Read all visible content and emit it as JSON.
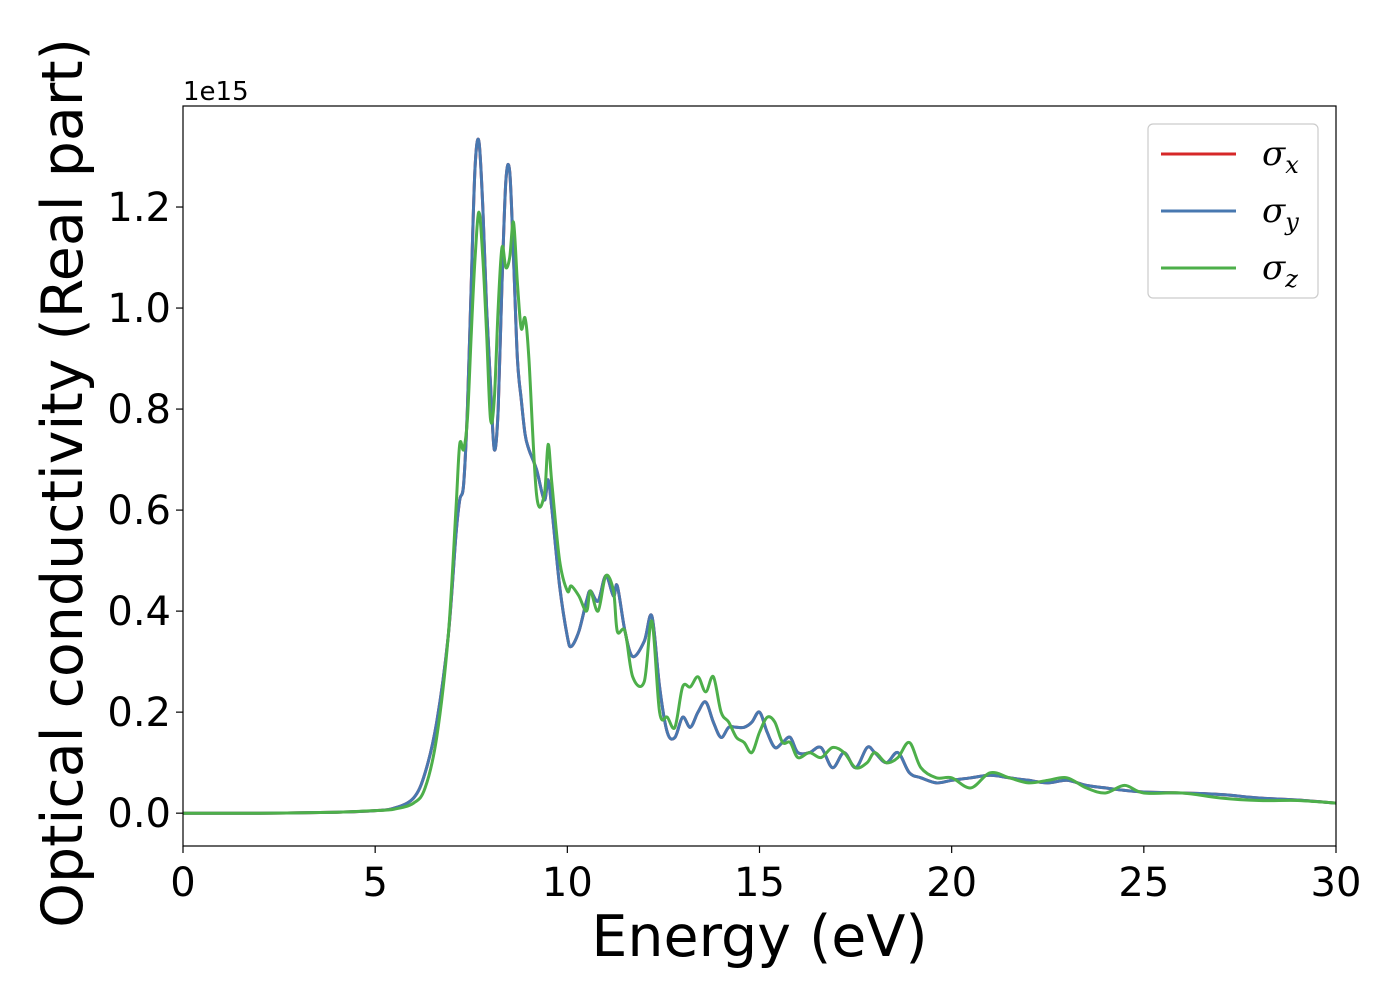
{
  "chart_data": {
    "type": "line",
    "title": "",
    "xlabel": "Energy (eV)",
    "ylabel": "Optical conductivity (Real part)",
    "y_offset_text": "1e15",
    "xlim": [
      0,
      30
    ],
    "ylim": [
      -0.065,
      1.4
    ],
    "xticks": [
      0,
      5,
      10,
      15,
      20,
      25,
      30
    ],
    "xtick_labels": [
      "0",
      "5",
      "10",
      "15",
      "20",
      "25",
      "30"
    ],
    "yticks": [
      0.0,
      0.2,
      0.4,
      0.6,
      0.8,
      1.0,
      1.2
    ],
    "ytick_labels": [
      "0.0",
      "0.2",
      "0.4",
      "0.6",
      "0.8",
      "1.0",
      "1.2"
    ],
    "grid": false,
    "legend_position": "top-right",
    "series": [
      {
        "name": "σx",
        "label_base": "σ",
        "label_sub": "x",
        "color": "#d62728",
        "x": [
          0,
          2,
          4,
          5,
          5.5,
          6,
          6.3,
          6.6,
          6.9,
          7.1,
          7.2,
          7.3,
          7.4,
          7.5,
          7.6,
          7.7,
          7.8,
          7.9,
          8.0,
          8.1,
          8.2,
          8.3,
          8.4,
          8.5,
          8.6,
          8.7,
          8.8,
          8.9,
          9.0,
          9.2,
          9.4,
          9.5,
          9.6,
          9.8,
          10.0,
          10.1,
          10.3,
          10.5,
          10.6,
          10.8,
          11.0,
          11.2,
          11.3,
          11.5,
          11.7,
          12.0,
          12.2,
          12.4,
          12.6,
          12.8,
          13.0,
          13.2,
          13.4,
          13.6,
          13.8,
          14.0,
          14.2,
          14.4,
          14.6,
          14.8,
          15.0,
          15.2,
          15.4,
          15.6,
          15.8,
          16.0,
          16.3,
          16.6,
          16.9,
          17.2,
          17.5,
          17.8,
          18.0,
          18.3,
          18.6,
          18.9,
          19.2,
          19.6,
          20.0,
          20.5,
          21.0,
          21.5,
          22.0,
          22.5,
          23.0,
          23.5,
          24.0,
          24.5,
          25.0,
          26.0,
          27.0,
          28.0,
          29.0,
          30.0
        ],
        "y": [
          0.0,
          0.0,
          0.002,
          0.005,
          0.01,
          0.03,
          0.08,
          0.18,
          0.35,
          0.55,
          0.62,
          0.65,
          0.8,
          1.05,
          1.28,
          1.33,
          1.2,
          1.0,
          0.85,
          0.72,
          0.8,
          1.05,
          1.25,
          1.27,
          1.1,
          0.9,
          0.82,
          0.75,
          0.72,
          0.68,
          0.62,
          0.66,
          0.6,
          0.45,
          0.35,
          0.33,
          0.36,
          0.42,
          0.44,
          0.42,
          0.47,
          0.43,
          0.45,
          0.36,
          0.31,
          0.34,
          0.39,
          0.25,
          0.16,
          0.15,
          0.19,
          0.17,
          0.2,
          0.22,
          0.18,
          0.15,
          0.17,
          0.17,
          0.17,
          0.18,
          0.2,
          0.16,
          0.13,
          0.14,
          0.15,
          0.12,
          0.12,
          0.13,
          0.09,
          0.12,
          0.09,
          0.13,
          0.12,
          0.1,
          0.12,
          0.08,
          0.07,
          0.06,
          0.065,
          0.07,
          0.075,
          0.07,
          0.065,
          0.06,
          0.065,
          0.055,
          0.05,
          0.045,
          0.042,
          0.04,
          0.037,
          0.03,
          0.026,
          0.02
        ]
      },
      {
        "name": "σy",
        "label_base": "σ",
        "label_sub": "y",
        "color": "#4878b0",
        "x": [
          0,
          2,
          4,
          5,
          5.5,
          6,
          6.3,
          6.6,
          6.9,
          7.1,
          7.2,
          7.3,
          7.4,
          7.5,
          7.6,
          7.7,
          7.8,
          7.9,
          8.0,
          8.1,
          8.2,
          8.3,
          8.4,
          8.5,
          8.6,
          8.7,
          8.8,
          8.9,
          9.0,
          9.2,
          9.4,
          9.5,
          9.6,
          9.8,
          10.0,
          10.1,
          10.3,
          10.5,
          10.6,
          10.8,
          11.0,
          11.2,
          11.3,
          11.5,
          11.7,
          12.0,
          12.2,
          12.4,
          12.6,
          12.8,
          13.0,
          13.2,
          13.4,
          13.6,
          13.8,
          14.0,
          14.2,
          14.4,
          14.6,
          14.8,
          15.0,
          15.2,
          15.4,
          15.6,
          15.8,
          16.0,
          16.3,
          16.6,
          16.9,
          17.2,
          17.5,
          17.8,
          18.0,
          18.3,
          18.6,
          18.9,
          19.2,
          19.6,
          20.0,
          20.5,
          21.0,
          21.5,
          22.0,
          22.5,
          23.0,
          23.5,
          24.0,
          24.5,
          25.0,
          26.0,
          27.0,
          28.0,
          29.0,
          30.0
        ],
        "y": [
          0.0,
          0.0,
          0.002,
          0.005,
          0.01,
          0.03,
          0.08,
          0.18,
          0.35,
          0.55,
          0.62,
          0.65,
          0.8,
          1.05,
          1.28,
          1.33,
          1.2,
          1.0,
          0.85,
          0.72,
          0.8,
          1.05,
          1.25,
          1.27,
          1.1,
          0.9,
          0.82,
          0.75,
          0.72,
          0.68,
          0.62,
          0.66,
          0.6,
          0.45,
          0.35,
          0.33,
          0.36,
          0.42,
          0.44,
          0.42,
          0.47,
          0.43,
          0.45,
          0.36,
          0.31,
          0.34,
          0.39,
          0.25,
          0.16,
          0.15,
          0.19,
          0.17,
          0.2,
          0.22,
          0.18,
          0.15,
          0.17,
          0.17,
          0.17,
          0.18,
          0.2,
          0.16,
          0.13,
          0.14,
          0.15,
          0.12,
          0.12,
          0.13,
          0.09,
          0.12,
          0.09,
          0.13,
          0.12,
          0.1,
          0.12,
          0.08,
          0.07,
          0.06,
          0.065,
          0.07,
          0.075,
          0.07,
          0.065,
          0.06,
          0.065,
          0.055,
          0.05,
          0.045,
          0.042,
          0.04,
          0.037,
          0.03,
          0.026,
          0.02
        ]
      },
      {
        "name": "σz",
        "label_base": "σ",
        "label_sub": "z",
        "color": "#4daf4a",
        "x": [
          0,
          2,
          4,
          5,
          5.5,
          6,
          6.3,
          6.6,
          6.9,
          7.1,
          7.2,
          7.3,
          7.4,
          7.5,
          7.6,
          7.7,
          7.8,
          7.9,
          8.0,
          8.1,
          8.2,
          8.3,
          8.4,
          8.5,
          8.6,
          8.7,
          8.8,
          8.9,
          9.0,
          9.2,
          9.4,
          9.5,
          9.6,
          9.8,
          10.0,
          10.1,
          10.3,
          10.5,
          10.6,
          10.8,
          11.0,
          11.2,
          11.3,
          11.5,
          11.7,
          12.0,
          12.2,
          12.4,
          12.6,
          12.8,
          13.0,
          13.2,
          13.4,
          13.6,
          13.8,
          14.0,
          14.2,
          14.4,
          14.6,
          14.8,
          15.0,
          15.2,
          15.4,
          15.6,
          15.8,
          16.0,
          16.3,
          16.6,
          16.9,
          17.2,
          17.5,
          17.8,
          18.0,
          18.3,
          18.6,
          18.9,
          19.2,
          19.6,
          20.0,
          20.5,
          21.0,
          21.5,
          22.0,
          22.5,
          23.0,
          23.5,
          24.0,
          24.5,
          25.0,
          26.0,
          27.0,
          28.0,
          29.0,
          30.0
        ],
        "y": [
          0.0,
          0.0,
          0.002,
          0.005,
          0.008,
          0.02,
          0.05,
          0.15,
          0.35,
          0.6,
          0.73,
          0.72,
          0.78,
          0.95,
          1.1,
          1.19,
          1.1,
          0.95,
          0.78,
          0.82,
          1.0,
          1.12,
          1.08,
          1.1,
          1.17,
          1.05,
          0.96,
          0.98,
          0.9,
          0.63,
          0.63,
          0.73,
          0.65,
          0.5,
          0.44,
          0.45,
          0.43,
          0.4,
          0.44,
          0.4,
          0.47,
          0.44,
          0.36,
          0.36,
          0.27,
          0.26,
          0.38,
          0.2,
          0.19,
          0.17,
          0.25,
          0.25,
          0.27,
          0.24,
          0.27,
          0.2,
          0.18,
          0.15,
          0.14,
          0.12,
          0.16,
          0.19,
          0.18,
          0.14,
          0.14,
          0.11,
          0.12,
          0.11,
          0.13,
          0.12,
          0.09,
          0.1,
          0.12,
          0.1,
          0.11,
          0.14,
          0.09,
          0.07,
          0.07,
          0.05,
          0.08,
          0.07,
          0.06,
          0.065,
          0.07,
          0.05,
          0.04,
          0.055,
          0.04,
          0.04,
          0.03,
          0.025,
          0.025,
          0.02
        ]
      }
    ]
  }
}
